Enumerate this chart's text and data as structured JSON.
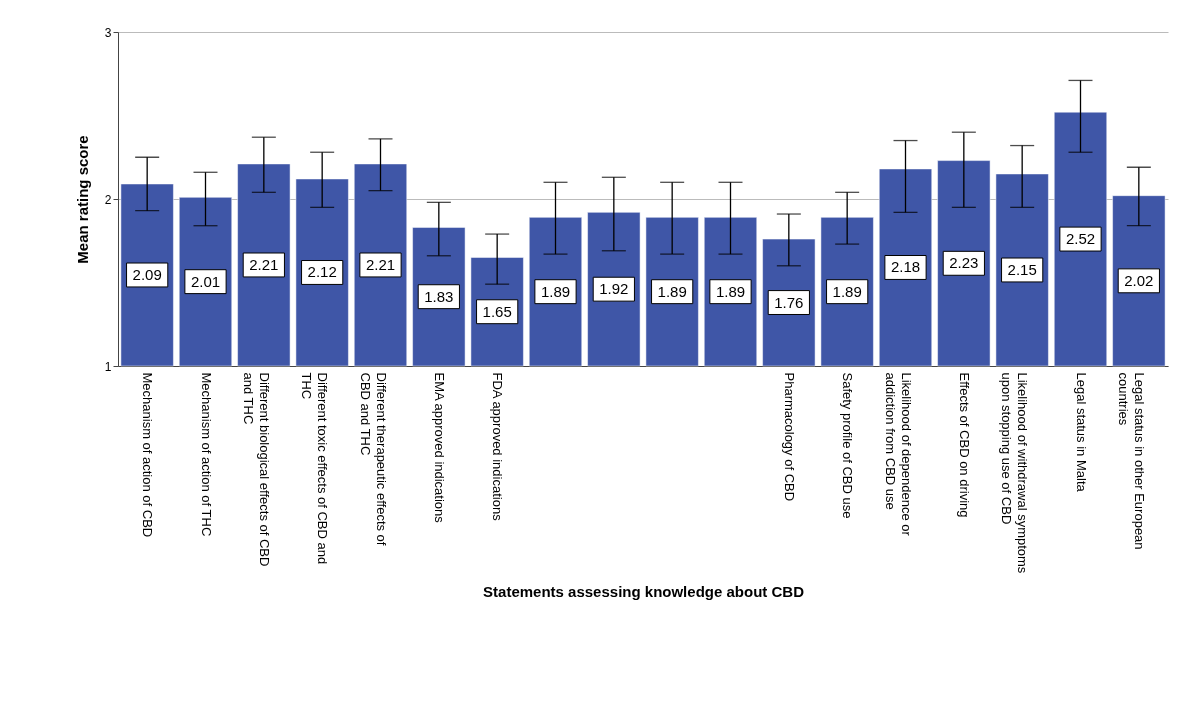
{
  "chart_data": {
    "type": "bar",
    "xlabel": "Statements assessing knowledge about CBD",
    "ylabel": "Mean rating score",
    "categories": [
      "Mechanism of action of CBD",
      "Mechanism of action of THC",
      "Different biological effects of CBD and THC",
      "Different toxic effects of CBD and THC",
      "Different therapeutic effects of CBD and THC",
      "EMA approved indications",
      "FDA approved indications",
      null,
      null,
      null,
      null,
      "Pharmacology of CBD",
      "Safety profile of CBD use",
      "Likelihood of dependence or addiction from CBD use",
      "Effects of CBD on driving",
      "Likelihood of withdrawal symptoms upon stopping use of CBD",
      "Legal status in Malta",
      "Legal status in other European countries"
    ],
    "values": [
      2.09,
      2.01,
      2.21,
      2.12,
      2.21,
      1.83,
      1.65,
      1.89,
      1.92,
      1.89,
      1.89,
      1.76,
      1.89,
      2.18,
      2.23,
      2.15,
      2.52,
      2.02
    ],
    "errors": [
      [
        1.93,
        2.25
      ],
      [
        1.84,
        2.16
      ],
      [
        2.04,
        2.37
      ],
      [
        1.95,
        2.28
      ],
      [
        2.05,
        2.36
      ],
      [
        1.66,
        1.98
      ],
      [
        1.49,
        1.79
      ],
      [
        1.67,
        2.1
      ],
      [
        1.69,
        2.13
      ],
      [
        1.67,
        2.1
      ],
      [
        1.67,
        2.1
      ],
      [
        1.6,
        1.91
      ],
      [
        1.73,
        2.04
      ],
      [
        1.92,
        2.35
      ],
      [
        1.95,
        2.4
      ],
      [
        1.95,
        2.32
      ],
      [
        2.28,
        2.71
      ],
      [
        1.84,
        2.19
      ]
    ],
    "color": "#3f56a7",
    "data_labels": true,
    "ylim": [
      1,
      3
    ],
    "yticks": [
      1,
      2,
      3
    ],
    "grid": "y"
  }
}
